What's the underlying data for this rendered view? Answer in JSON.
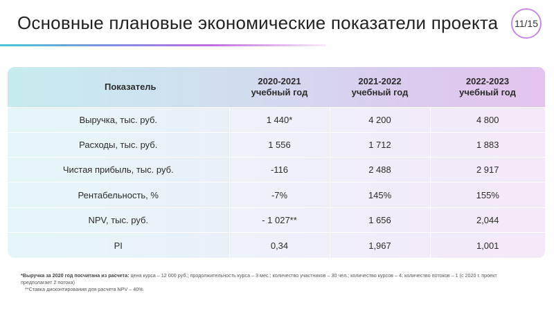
{
  "slide": {
    "title": "Основные плановые экономические показатели проекта",
    "page": "11/15"
  },
  "table": {
    "headers": [
      {
        "line1": "Показатель",
        "line2": ""
      },
      {
        "line1": "2020-2021",
        "line2": "учебный год"
      },
      {
        "line1": "2021-2022",
        "line2": "учебный год"
      },
      {
        "line1": "2022-2023",
        "line2": "учебный год"
      }
    ],
    "rows": [
      [
        "Выручка, тыс. руб.",
        "1 440*",
        "4 200",
        "4 800"
      ],
      [
        "Расходы, тыс. руб.",
        "1 556",
        "1 712",
        "1 883"
      ],
      [
        "Чистая прибыль, тыс. руб.",
        "-116",
        "2 488",
        "2 917"
      ],
      [
        "Рентабельность, %",
        "-7%",
        "145%",
        "155%"
      ],
      [
        "NPV, тыс. руб.",
        "- 1 027**",
        "1 656",
        "2,044"
      ],
      [
        "PI",
        "0,34",
        "1,967",
        "1,001"
      ]
    ]
  },
  "notes": {
    "note1_bold": "*Выручка за 2020 год посчитана из расчета:",
    "note1_text": " цена курса – 12 000 руб.; продолжительность курса – 3 мес.; количество участников – 30 чел.; количество курсов – 4; количество потоков – 1 (с 2020 г. проект предполагает 2 потока)",
    "note2": "**Ставка дисконтирования для расчета NPV – 40%"
  }
}
